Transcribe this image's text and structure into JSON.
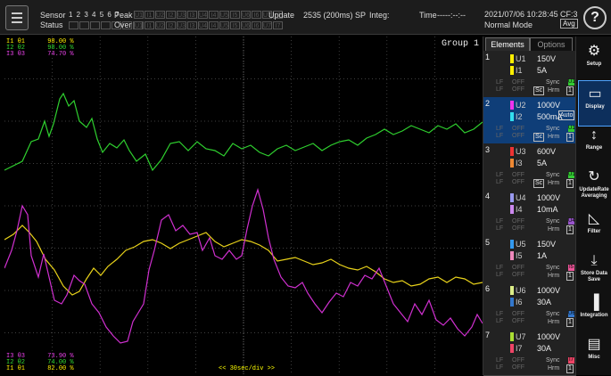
{
  "topbar": {
    "sensor_label": "Sensor",
    "status_label": "Status",
    "sensor_nums": "1 2 3 4 5 6 7",
    "peak_label": "Peak",
    "over_label": "Over",
    "peak_cells": [
      "U1",
      "I1",
      "U2",
      "I2",
      "U3",
      "I3",
      "U4",
      "I4",
      "U5",
      "I5",
      "U6",
      "I6",
      "U7",
      "I7"
    ],
    "over_cells": [
      "U1",
      "I1",
      "U2",
      "I2",
      "U3",
      "I3",
      "U4",
      "I4",
      "U5",
      "I5",
      "U6",
      "I6",
      "U7",
      "I7"
    ],
    "update_label": "Update",
    "update_value": "2535 (200ms) SP",
    "integ_label": "Integ:",
    "time_label": "Time",
    "time_value": "-----:--:--",
    "datetime": "2021/07/06 10:28:45",
    "cf": "CF:3",
    "mode": "Normal Mode",
    "avg": "Avg",
    "help": "?"
  },
  "waveform": {
    "group_label": "Group 1",
    "time_div": "<< 30sec/div >>",
    "top_legend": [
      {
        "ch": "I1",
        "n": "θ1",
        "val": "98.00 %",
        "color": "#ffee00"
      },
      {
        "ch": "I2",
        "n": "θ2",
        "val": "98.00 %",
        "color": "#33dd33"
      },
      {
        "ch": "I3",
        "n": "θ3",
        "val": "74.70 %",
        "color": "#ee44ee"
      }
    ],
    "bottom_legend": [
      {
        "ch": "I3",
        "n": "θ3",
        "val": "73.90 %",
        "color": "#ee44ee"
      },
      {
        "ch": "I2",
        "n": "θ2",
        "val": "74.00 %",
        "color": "#33dd33"
      },
      {
        "ch": "I1",
        "n": "θ1",
        "val": "82.00 %",
        "color": "#ffee00"
      }
    ],
    "series": [
      {
        "name": "green",
        "color": "#2fd02f",
        "points": [
          [
            0,
            150
          ],
          [
            20,
            140
          ],
          [
            30,
            118
          ],
          [
            38,
            115
          ],
          [
            45,
            95
          ],
          [
            50,
            112
          ],
          [
            55,
            98
          ],
          [
            62,
            70
          ],
          [
            66,
            64
          ],
          [
            72,
            78
          ],
          [
            78,
            72
          ],
          [
            84,
            95
          ],
          [
            92,
            102
          ],
          [
            98,
            92
          ],
          [
            104,
            115
          ],
          [
            110,
            130
          ],
          [
            118,
            120
          ],
          [
            126,
            125
          ],
          [
            134,
            116
          ],
          [
            140,
            128
          ],
          [
            148,
            140
          ],
          [
            158,
            132
          ],
          [
            166,
            150
          ],
          [
            176,
            138
          ],
          [
            186,
            120
          ],
          [
            196,
            118
          ],
          [
            206,
            128
          ],
          [
            216,
            118
          ],
          [
            226,
            126
          ],
          [
            236,
            128
          ],
          [
            246,
            134
          ],
          [
            256,
            120
          ],
          [
            266,
            126
          ],
          [
            276,
            122
          ],
          [
            286,
            130
          ],
          [
            296,
            134
          ],
          [
            306,
            126
          ],
          [
            316,
            122
          ],
          [
            326,
            128
          ],
          [
            336,
            124
          ],
          [
            346,
            120
          ],
          [
            356,
            128
          ],
          [
            366,
            122
          ],
          [
            376,
            118
          ],
          [
            386,
            116
          ],
          [
            396,
            122
          ],
          [
            406,
            114
          ],
          [
            416,
            110
          ],
          [
            426,
            104
          ],
          [
            436,
            110
          ],
          [
            446,
            106
          ],
          [
            456,
            100
          ],
          [
            466,
            104
          ],
          [
            476,
            108
          ],
          [
            486,
            100
          ],
          [
            496,
            104
          ],
          [
            506,
            98
          ],
          [
            516,
            108
          ],
          [
            526,
            104
          ],
          [
            536,
            96
          ]
        ]
      },
      {
        "name": "yellow",
        "color": "#e8d21a",
        "points": [
          [
            0,
            228
          ],
          [
            10,
            222
          ],
          [
            20,
            212
          ],
          [
            28,
            220
          ],
          [
            36,
            230
          ],
          [
            46,
            250
          ],
          [
            56,
            262
          ],
          [
            66,
            280
          ],
          [
            76,
            290
          ],
          [
            84,
            286
          ],
          [
            92,
            272
          ],
          [
            100,
            260
          ],
          [
            108,
            268
          ],
          [
            116,
            258
          ],
          [
            126,
            250
          ],
          [
            136,
            240
          ],
          [
            146,
            236
          ],
          [
            156,
            230
          ],
          [
            166,
            228
          ],
          [
            176,
            232
          ],
          [
            186,
            238
          ],
          [
            196,
            232
          ],
          [
            206,
            228
          ],
          [
            216,
            224
          ],
          [
            226,
            220
          ],
          [
            236,
            230
          ],
          [
            246,
            236
          ],
          [
            256,
            232
          ],
          [
            266,
            228
          ],
          [
            276,
            230
          ],
          [
            286,
            234
          ],
          [
            296,
            240
          ],
          [
            306,
            252
          ],
          [
            316,
            250
          ],
          [
            326,
            248
          ],
          [
            336,
            252
          ],
          [
            346,
            256
          ],
          [
            356,
            254
          ],
          [
            366,
            250
          ],
          [
            376,
            256
          ],
          [
            386,
            260
          ],
          [
            396,
            262
          ],
          [
            406,
            258
          ],
          [
            416,
            264
          ],
          [
            426,
            272
          ],
          [
            436,
            276
          ],
          [
            446,
            274
          ],
          [
            456,
            280
          ],
          [
            466,
            278
          ],
          [
            476,
            272
          ],
          [
            486,
            270
          ],
          [
            496,
            276
          ],
          [
            506,
            270
          ],
          [
            516,
            272
          ],
          [
            526,
            278
          ],
          [
            536,
            276
          ]
        ]
      },
      {
        "name": "magenta",
        "color": "#d030d0",
        "points": [
          [
            0,
            260
          ],
          [
            8,
            240
          ],
          [
            14,
            218
          ],
          [
            20,
            190
          ],
          [
            26,
            200
          ],
          [
            30,
            246
          ],
          [
            38,
            270
          ],
          [
            44,
            244
          ],
          [
            50,
            270
          ],
          [
            56,
            296
          ],
          [
            64,
            300
          ],
          [
            70,
            290
          ],
          [
            78,
            268
          ],
          [
            84,
            274
          ],
          [
            90,
            278
          ],
          [
            98,
            300
          ],
          [
            106,
            310
          ],
          [
            114,
            326
          ],
          [
            122,
            336
          ],
          [
            130,
            344
          ],
          [
            138,
            342
          ],
          [
            144,
            320
          ],
          [
            150,
            310
          ],
          [
            156,
            300
          ],
          [
            162,
            262
          ],
          [
            168,
            240
          ],
          [
            176,
            206
          ],
          [
            184,
            200
          ],
          [
            192,
            218
          ],
          [
            200,
            212
          ],
          [
            208,
            222
          ],
          [
            216,
            220
          ],
          [
            222,
            240
          ],
          [
            230,
            226
          ],
          [
            236,
            246
          ],
          [
            244,
            250
          ],
          [
            252,
            240
          ],
          [
            260,
            250
          ],
          [
            266,
            246
          ],
          [
            272,
            216
          ],
          [
            278,
            190
          ],
          [
            284,
            172
          ],
          [
            290,
            194
          ],
          [
            296,
            226
          ],
          [
            302,
            250
          ],
          [
            310,
            270
          ],
          [
            318,
            280
          ],
          [
            326,
            282
          ],
          [
            334,
            276
          ],
          [
            340,
            288
          ],
          [
            348,
            300
          ],
          [
            356,
            310
          ],
          [
            364,
            298
          ],
          [
            372,
            288
          ],
          [
            380,
            292
          ],
          [
            388,
            276
          ],
          [
            396,
            280
          ],
          [
            404,
            268
          ],
          [
            412,
            272
          ],
          [
            420,
            260
          ],
          [
            428,
            280
          ],
          [
            436,
            300
          ],
          [
            444,
            310
          ],
          [
            452,
            320
          ],
          [
            460,
            300
          ],
          [
            468,
            312
          ],
          [
            476,
            296
          ],
          [
            484,
            318
          ],
          [
            492,
            324
          ],
          [
            500,
            316
          ],
          [
            508,
            328
          ],
          [
            516,
            336
          ],
          [
            524,
            326
          ],
          [
            530,
            312
          ],
          [
            536,
            322
          ]
        ]
      }
    ]
  },
  "elements_panel": {
    "tabs": [
      "Elements",
      "Options"
    ],
    "rows": [
      {
        "num": "1",
        "u": "U1",
        "u_range": "150V",
        "u_color": "#ffee00",
        "i": "I1",
        "i_range": "5A",
        "i_color": "#ffee00",
        "lf": "LF",
        "off": "OFF",
        "sync": "Sync",
        "sync_badge": "U1",
        "sync_color": "#33cc33",
        "sc": "Sc",
        "hrm": "Hrm",
        "hrm_val": "1",
        "auto": "",
        "selected": false
      },
      {
        "num": "2",
        "u": "U2",
        "u_range": "1000V",
        "u_color": "#ee33ee",
        "i": "I2",
        "i_range": "500mA",
        "i_color": "#33ddee",
        "lf": "LF",
        "off": "OFF",
        "sync": "Sync",
        "sync_badge": "U1",
        "sync_color": "#33cc33",
        "sc": "Sc",
        "hrm": "Hrm",
        "hrm_val": "1",
        "auto": "Auto",
        "selected": true
      },
      {
        "num": "3",
        "u": "U3",
        "u_range": "600V",
        "u_color": "#ee3333",
        "i": "I3",
        "i_range": "5A",
        "i_color": "#ee8833",
        "lf": "LF",
        "off": "OFF",
        "sync": "Sync",
        "sync_badge": "U1",
        "sync_color": "#33cc33",
        "sc": "Sc",
        "hrm": "Hrm",
        "hrm_val": "1",
        "auto": "",
        "selected": false
      },
      {
        "num": "4",
        "u": "U4",
        "u_range": "1000V",
        "u_color": "#9999ee",
        "i": "I4",
        "i_range": "10mA",
        "i_color": "#cc88ee",
        "lf": "LF",
        "off": "OFF",
        "sync": "Sync",
        "sync_badge": "U4",
        "sync_color": "#9955cc",
        "sc": "",
        "hrm": "Hrm",
        "hrm_val": "1",
        "auto": "",
        "selected": false
      },
      {
        "num": "5",
        "u": "U5",
        "u_range": "150V",
        "u_color": "#3399ee",
        "i": "I5",
        "i_range": "1A",
        "i_color": "#ee88bb",
        "lf": "LF",
        "off": "OFF",
        "sync": "Sync",
        "sync_badge": "I5",
        "sync_color": "#ee5599",
        "sc": "",
        "hrm": "Hrm",
        "hrm_val": "1",
        "auto": "",
        "selected": false
      },
      {
        "num": "6",
        "u": "U6",
        "u_range": "1000V",
        "u_color": "#ddee88",
        "i": "I6",
        "i_range": "30A",
        "i_color": "#3377cc",
        "lf": "LF",
        "off": "OFF",
        "sync": "Sync",
        "sync_badge": "U6",
        "sync_color": "#3377cc",
        "sc": "",
        "hrm": "Hrm",
        "hrm_val": "1",
        "auto": "",
        "selected": false
      },
      {
        "num": "7",
        "u": "U7",
        "u_range": "1000V",
        "u_color": "#aadd33",
        "i": "I7",
        "i_range": "30A",
        "i_color": "#ee4466",
        "lf": "LF",
        "off": "OFF",
        "sync": "Sync",
        "sync_badge": "I7",
        "sync_color": "#ee4466",
        "sc": "",
        "hrm": "Hrm",
        "hrm_val": "1",
        "auto": "",
        "selected": false
      }
    ]
  },
  "sidebar": {
    "buttons": [
      {
        "name": "setup",
        "icon": "gear-icon",
        "glyph": "⚙",
        "label": "Setup",
        "selected": false
      },
      {
        "name": "display",
        "icon": "display-icon",
        "glyph": "▭",
        "label": "Display",
        "selected": true
      },
      {
        "name": "range",
        "icon": "range-icon",
        "glyph": "↕",
        "label": "Range",
        "selected": false
      },
      {
        "name": "update-rate",
        "icon": "refresh-icon",
        "glyph": "↻",
        "label": "UpdateRate Averaging",
        "selected": false
      },
      {
        "name": "filter",
        "icon": "filter-icon",
        "glyph": "◺",
        "label": "Filter",
        "selected": false
      },
      {
        "name": "store",
        "icon": "download-icon",
        "glyph": "⤓",
        "label": "Store Data Save",
        "selected": false
      },
      {
        "name": "integration",
        "icon": "integration-icon",
        "glyph": "▐",
        "label": "Integration",
        "selected": false
      },
      {
        "name": "misc",
        "icon": "toolbox-icon",
        "glyph": "▤",
        "label": "Misc",
        "selected": false
      }
    ]
  }
}
